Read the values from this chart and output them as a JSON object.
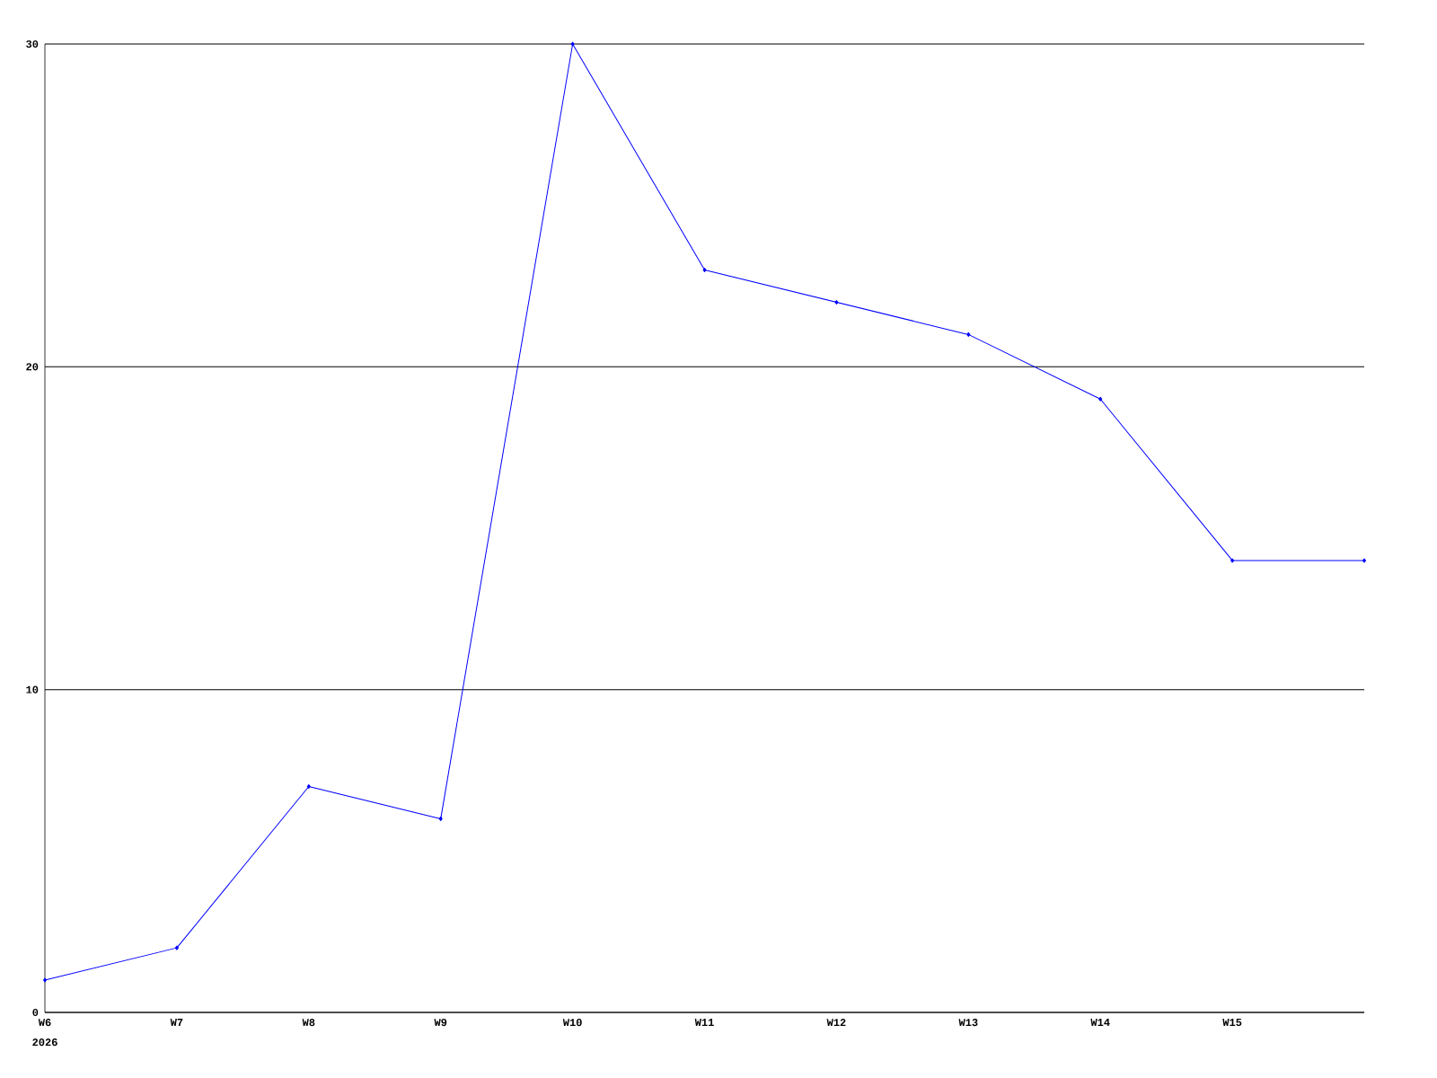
{
  "chart_data": {
    "type": "line",
    "categories": [
      "W6",
      "W7",
      "W8",
      "W9",
      "W10",
      "W11",
      "W12",
      "W13",
      "W14",
      "W15",
      null
    ],
    "values": [
      1,
      2,
      7,
      6,
      30,
      23,
      22,
      21,
      19,
      14,
      14
    ],
    "color": "#0000ff",
    "ylim": [
      0,
      30
    ],
    "yticks": [
      0,
      10,
      20,
      30
    ],
    "grid": "y",
    "marker": "diamond",
    "line_style": "solid",
    "annotations": [
      "2026"
    ]
  }
}
